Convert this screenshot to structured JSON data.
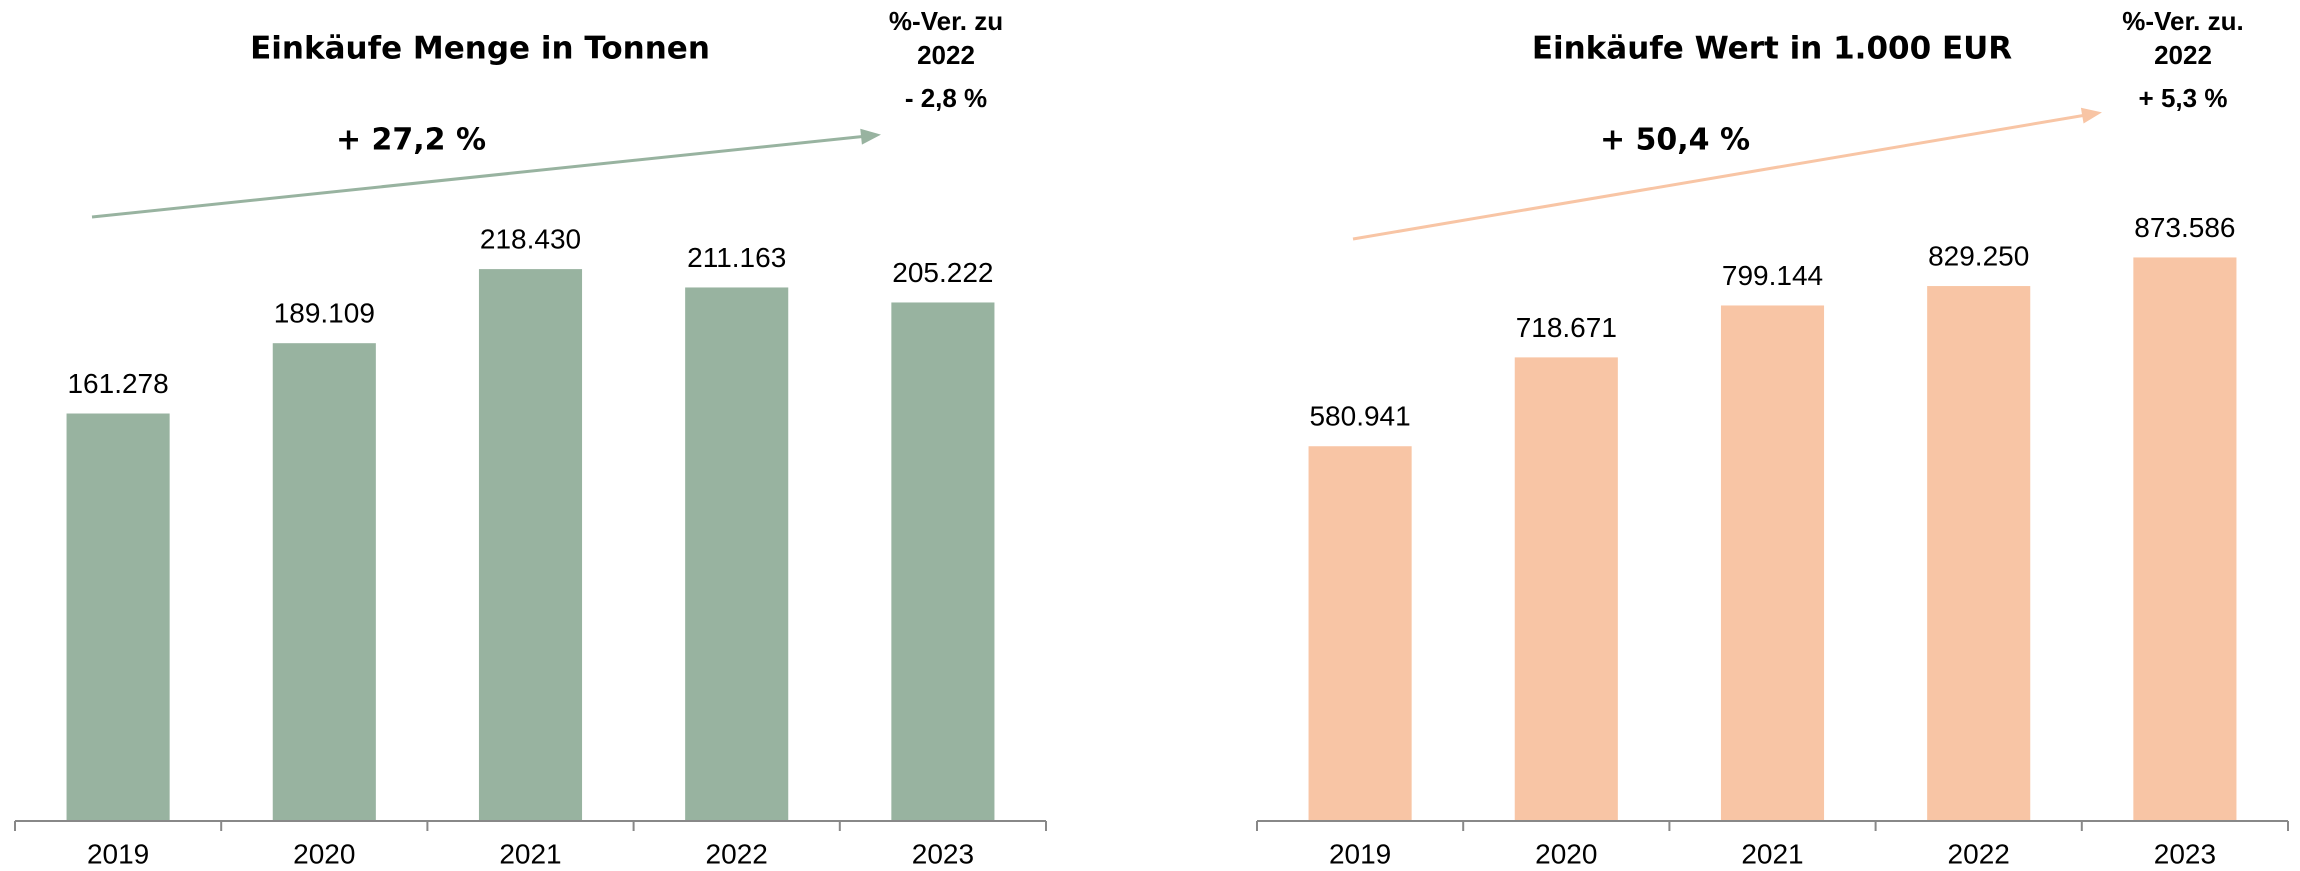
{
  "chart_data": [
    {
      "type": "bar",
      "title": "Einkäufe Menge in Tonnen",
      "categories": [
        "2019",
        "2020",
        "2021",
        "2022",
        "2023"
      ],
      "values": [
        161278,
        189109,
        218430,
        211163,
        205222
      ],
      "value_labels": [
        "161.278",
        "189.109",
        "218.430",
        "211.163",
        "205.222"
      ],
      "color": "#98b3a0",
      "ylim": [
        0,
        300000
      ],
      "annotations": [
        "+ 27,2 %",
        "%-Ver. zu",
        "2022",
        "- 2,8 %"
      ]
    },
    {
      "type": "bar",
      "title": "Einkäufe Wert in 1.000 EUR",
      "categories": [
        "2019",
        "2020",
        "2021",
        "2022",
        "2023"
      ],
      "values": [
        580941,
        718671,
        799144,
        829250,
        873586
      ],
      "value_labels": [
        "580.941",
        "718.671",
        "799.144",
        "829.250",
        "873.586"
      ],
      "color": "#f8c5a5",
      "ylim": [
        0,
        1175000
      ],
      "annotations": [
        "+ 50,4 %",
        "%-Ver. zu.",
        "2022",
        "+ 5,3 %"
      ]
    }
  ]
}
